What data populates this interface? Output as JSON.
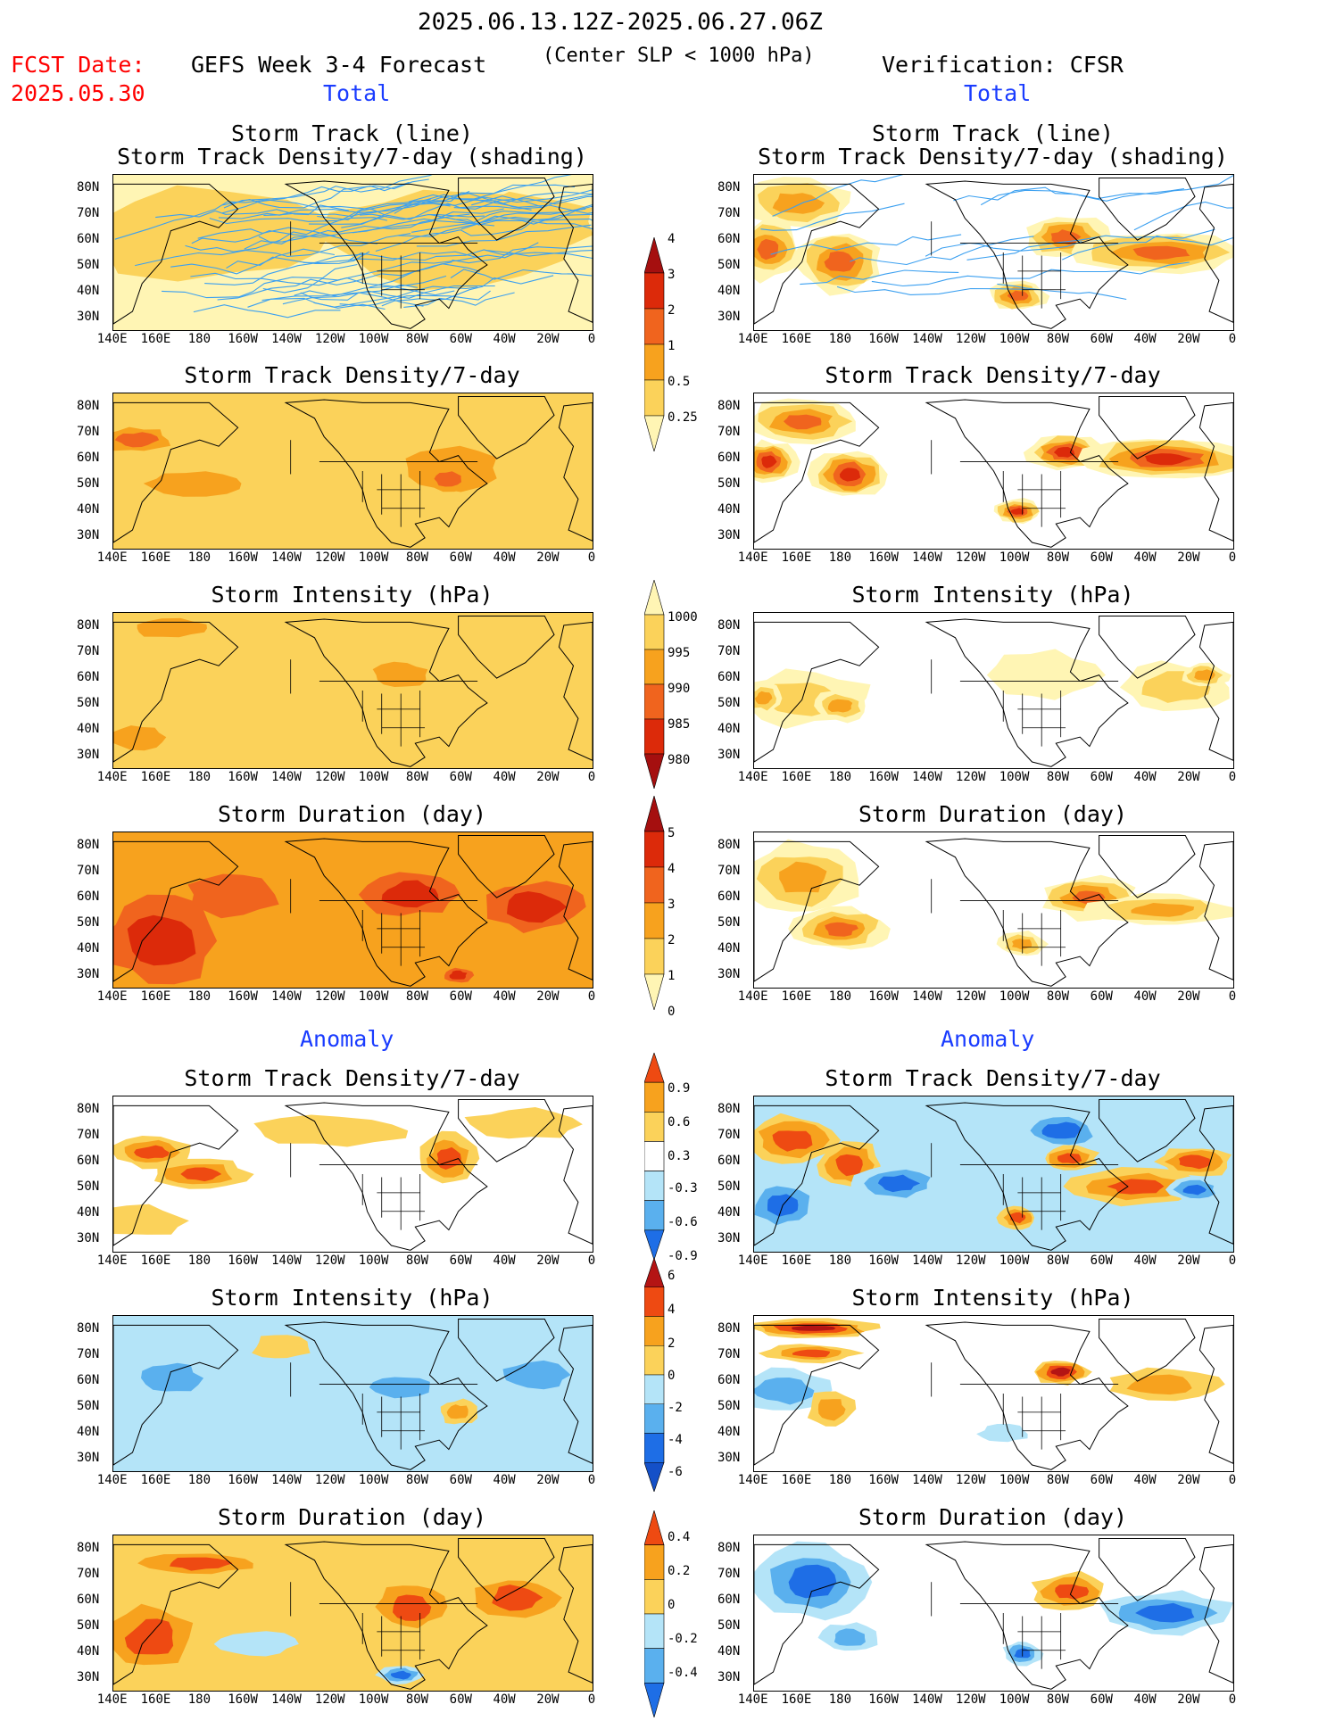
{
  "header": {
    "date_range": "2025.06.13.12Z-2025.06.27.06Z",
    "fcst_label": "FCST Date:",
    "fcst_date": "2025.05.30",
    "left_title": "GEFS Week 3-4 Forecast",
    "center_note": "(Center SLP < 1000 hPa)",
    "right_title": "Verification: CFSR",
    "total_label": "Total",
    "anomaly_label": "Anomaly"
  },
  "axes": {
    "lat_labels": [
      "80N",
      "70N",
      "60N",
      "50N",
      "40N",
      "30N"
    ],
    "lon_labels": [
      "140E",
      "160E",
      "180",
      "160W",
      "140W",
      "120W",
      "100W",
      "80W",
      "60W",
      "40W",
      "20W",
      "0"
    ]
  },
  "panels": {
    "r1_title_a": "Storm Track (line)",
    "r1_title_b": "Storm Track Density/7-day (shading)",
    "density": "Storm Track Density/7-day",
    "intensity": "Storm Intensity (hPa)",
    "duration": "Storm Duration (day)"
  },
  "colorbars": {
    "density_total": {
      "labels": [
        "4",
        "3",
        "2",
        "1",
        "0.5",
        "0.25"
      ],
      "colors": [
        "#a50f0f",
        "#dc2a0a",
        "#f0641e",
        "#f7a21e",
        "#fbd25a",
        "#fff5b4"
      ]
    },
    "intensity_total": {
      "labels": [
        "1000",
        "995",
        "990",
        "985",
        "980"
      ],
      "colors": [
        "#fff5b4",
        "#fbd25a",
        "#f7a21e",
        "#f0641e",
        "#dc2a0a",
        "#a50f0f"
      ]
    },
    "duration_total": {
      "labels": [
        "5",
        "4",
        "3",
        "2",
        "1",
        "0"
      ],
      "colors": [
        "#a50f0f",
        "#dc2a0a",
        "#f0641e",
        "#f7a21e",
        "#fbd25a",
        "#fff5b4"
      ]
    },
    "density_anom": {
      "labels": [
        "0.9",
        "0.6",
        "0.3",
        "-0.3",
        "-0.6",
        "-0.9"
      ],
      "colors": [
        "#ee4a12",
        "#f7a21e",
        "#fbd25a",
        "#ffffff",
        "#b4e4f8",
        "#5ab0ee",
        "#1e6ee6"
      ]
    },
    "intensity_anom": {
      "labels": [
        "6",
        "4",
        "2",
        "0",
        "-2",
        "-4",
        "-6"
      ],
      "colors": [
        "#b41414",
        "#ee4a12",
        "#f7a21e",
        "#fbd25a",
        "#b4e4f8",
        "#5ab0ee",
        "#1e6ee6",
        "#1450c8"
      ]
    },
    "duration_anom": {
      "labels": [
        "0.4",
        "0.2",
        "0",
        "-0.2",
        "-0.4"
      ],
      "colors": [
        "#ee4a12",
        "#f7a21e",
        "#fbd25a",
        "#b4e4f8",
        "#5ab0ee",
        "#1e6ee6"
      ]
    }
  },
  "colors": {
    "track_line": "#3ca0f0",
    "coast": "#000000",
    "pos_palette": [
      "#fff5b4",
      "#fbd25a",
      "#f7a21e",
      "#f0641e",
      "#dc2a0a",
      "#a50f0f"
    ],
    "anom_palette": [
      "#1450c8",
      "#1e6ee6",
      "#5ab0ee",
      "#b4e4f8",
      "#ffffff",
      "#fbd25a",
      "#f7a21e",
      "#ee4a12",
      "#b41414"
    ]
  }
}
